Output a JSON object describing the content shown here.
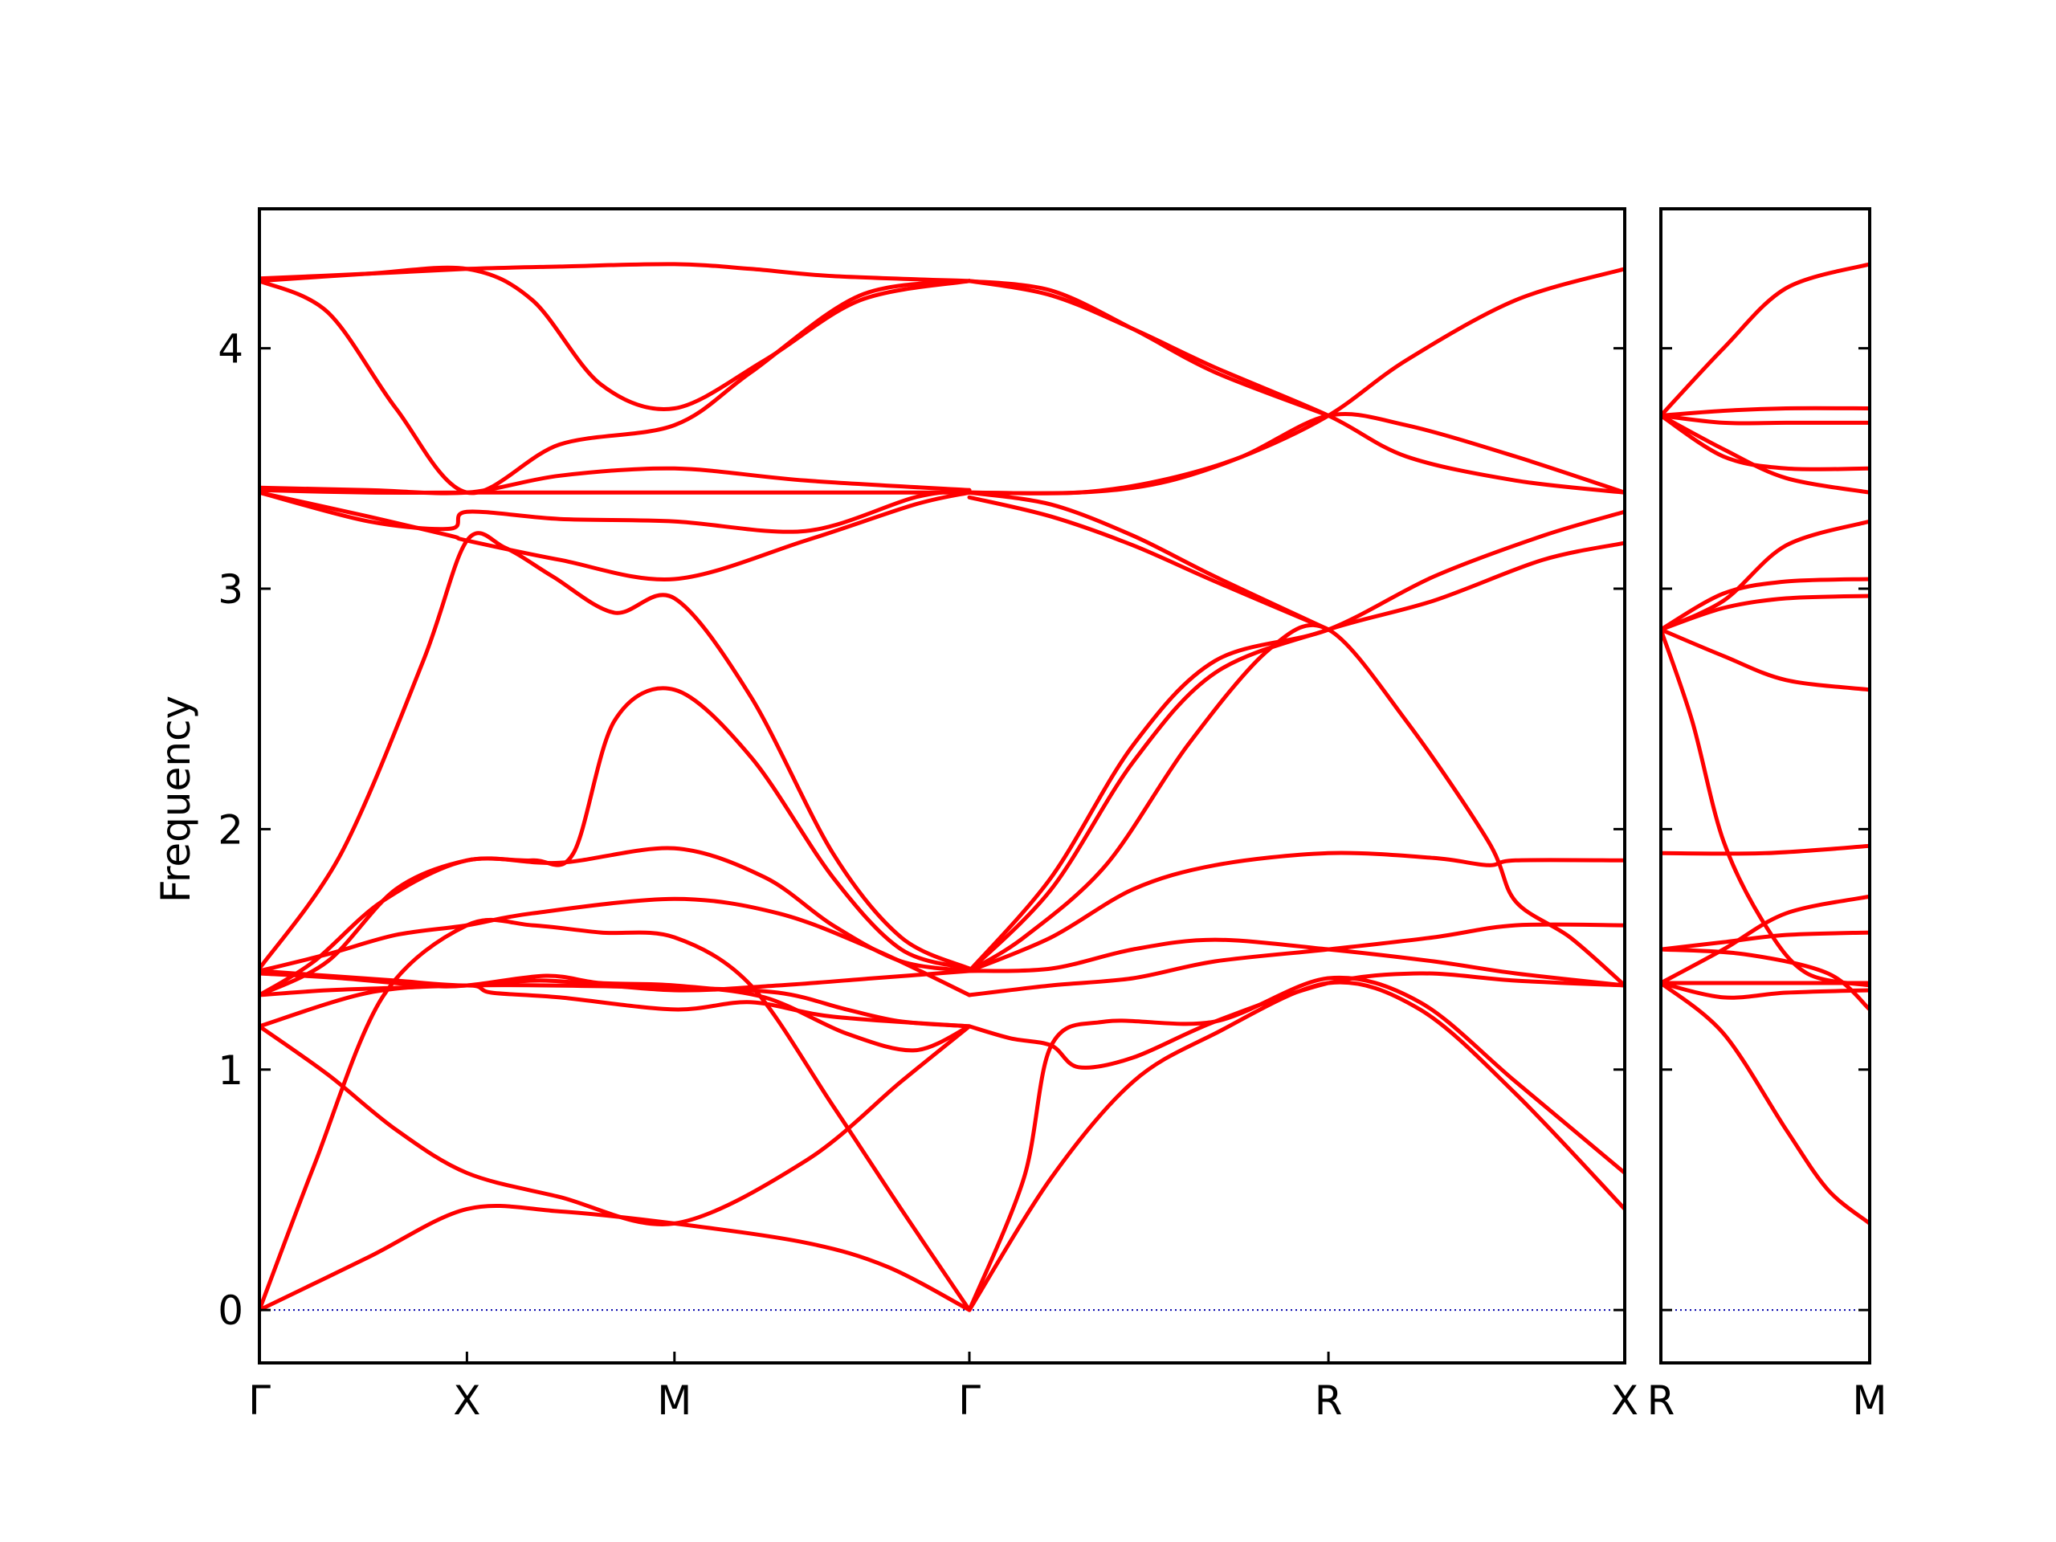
{
  "chart_data": {
    "type": "line",
    "ylabel": "Frequency",
    "xlabel": "",
    "title": "",
    "ylim": [
      -0.22,
      4.58
    ],
    "yticks": [
      0,
      1,
      2,
      3,
      4
    ],
    "grid": false,
    "zero_line_color": "#0000aa",
    "band_color": "#ff0000",
    "panels": [
      {
        "xlim": [
          0,
          100
        ],
        "ticks": [
          {
            "x": 0,
            "label": "Γ"
          },
          {
            "x": 15.2,
            "label": "X"
          },
          {
            "x": 30.4,
            "label": "M"
          },
          {
            "x": 52.0,
            "label": "Γ"
          },
          {
            "x": 78.3,
            "label": "R"
          },
          {
            "x": 100,
            "label": "X"
          }
        ],
        "series": [
          {
            "x": [
              0,
              8,
              15.2,
              22,
              30.4,
              40,
              46,
              52
            ],
            "y": [
              0,
              0.22,
              0.42,
              0.41,
              0.36,
              0.28,
              0.18,
              0
            ]
          },
          {
            "x": [
              0,
              5,
              10,
              15.2,
              22,
              30.4,
              40,
              47,
              52
            ],
            "y": [
              1.18,
              0.98,
              0.75,
              0.57,
              0.47,
              0.36,
              0.62,
              0.95,
              1.18
            ]
          },
          {
            "x": [
              0,
              4,
              9,
              15.2,
              20,
              25,
              30.4,
              36,
              42,
              47,
              52
            ],
            "y": [
              0,
              0.6,
              1.3,
              1.6,
              1.6,
              1.57,
              1.55,
              1.35,
              0.85,
              0.42,
              0
            ]
          },
          {
            "x": [
              0,
              8,
              15.2,
              17,
              22,
              30.4,
              36,
              42,
              52
            ],
            "y": [
              1.18,
              1.32,
              1.35,
              1.32,
              1.3,
              1.25,
              1.28,
              1.22,
              1.18
            ]
          },
          {
            "x": [
              0,
              5,
              10,
              15.2,
              21,
              30.4,
              38,
              43,
              47,
              52
            ],
            "y": [
              1.31,
              1.33,
              1.34,
              1.35,
              1.35,
              1.34,
              1.32,
              1.25,
              1.2,
              1.18
            ]
          },
          {
            "x": [
              0,
              5,
              10,
              15.2,
              21,
              30.4,
              38,
              45,
              52
            ],
            "y": [
              1.41,
              1.39,
              1.37,
              1.35,
              1.37,
              1.33,
              1.35,
              1.38,
              1.41
            ]
          },
          {
            "x": [
              0,
              6,
              12,
              15.2,
              21,
              25,
              30.4,
              37,
              43,
              48,
              52
            ],
            "y": [
              1.4,
              1.38,
              1.35,
              1.35,
              1.39,
              1.36,
              1.35,
              1.3,
              1.15,
              1.08,
              1.18
            ]
          },
          {
            "x": [
              0,
              4,
              9,
              15.2,
              22,
              30.4,
              37,
              42,
              47,
              52
            ],
            "y": [
              1.31,
              1.45,
              1.7,
              1.87,
              1.86,
              1.92,
              1.8,
              1.6,
              1.45,
              1.41
            ]
          },
          {
            "x": [
              0,
              5,
              10,
              15.2,
              20,
              30.4,
              38,
              45,
              52
            ],
            "y": [
              1.41,
              1.48,
              1.56,
              1.6,
              1.65,
              1.71,
              1.65,
              1.5,
              1.31
            ]
          },
          {
            "x": [
              0,
              6,
              12,
              15.2,
              18,
              21.5,
              26,
              30.4,
              36,
              42,
              47,
              52
            ],
            "y": [
              1.42,
              1.9,
              2.7,
              3.2,
              3.17,
              3.05,
              2.9,
              2.96,
              2.55,
              1.9,
              1.55,
              1.42
            ]
          },
          {
            "x": [
              0,
              5,
              10,
              15.2,
              20,
              23,
              26,
              30.4,
              36,
              42,
              47,
              52
            ],
            "y": [
              1.31,
              1.45,
              1.75,
              1.87,
              1.87,
              1.9,
              2.45,
              2.58,
              2.3,
              1.8,
              1.5,
              1.42
            ]
          },
          {
            "x": [
              0,
              8,
              14,
              15.2,
              22,
              30.4,
              40,
              48,
              52
            ],
            "y": [
              3.4,
              3.3,
              3.22,
              3.2,
              3.12,
              3.04,
              3.2,
              3.35,
              3.4
            ]
          },
          {
            "x": [
              0,
              8,
              14,
              15.2,
              22,
              30.4,
              40,
              48,
              52
            ],
            "y": [
              3.4,
              3.28,
              3.25,
              3.32,
              3.29,
              3.28,
              3.24,
              3.38,
              3.41
            ]
          },
          {
            "x": [
              0,
              8,
              15.2,
              22,
              30.4,
              40,
              52
            ],
            "y": [
              3.42,
              3.41,
              3.4,
              3.47,
              3.5,
              3.45,
              3.41
            ]
          },
          {
            "x": [
              0,
              8,
              15.2,
              22,
              30.4,
              40,
              52
            ],
            "y": [
              3.41,
              3.4,
              3.4,
              3.4,
              3.4,
              3.4,
              3.4
            ]
          },
          {
            "x": [
              0,
              8,
              15.2,
              22,
              30.4,
              36,
              42,
              52
            ],
            "y": [
              4.29,
              4.31,
              4.33,
              4.34,
              4.35,
              4.33,
              4.3,
              4.28
            ]
          },
          {
            "x": [
              0,
              8,
              15.2,
              20,
              25,
              30.4,
              37,
              44,
              52
            ],
            "y": [
              4.28,
              4.31,
              4.33,
              4.2,
              3.85,
              3.75,
              3.95,
              4.2,
              4.28
            ]
          },
          {
            "x": [
              0,
              5,
              10,
              15.2,
              22,
              30.4,
              36,
              44,
              52
            ],
            "y": [
              4.28,
              4.15,
              3.75,
              3.4,
              3.6,
              3.68,
              3.9,
              4.22,
              4.28
            ]
          },
          {
            "x": [
              52,
              58,
              64,
              70,
              78.3,
              85,
              92,
              100
            ],
            "y": [
              0,
              0.55,
              0.95,
              1.15,
              1.36,
              1.25,
              0.9,
              0.42
            ]
          },
          {
            "x": [
              52,
              56,
              58,
              62,
              70,
              78.3,
              85,
              92,
              100
            ],
            "y": [
              0,
              0.55,
              1.1,
              1.2,
              1.2,
              1.38,
              1.28,
              0.95,
              0.57
            ]
          },
          {
            "x": [
              52,
              55,
              58,
              60,
              64,
              70,
              78.3,
              85,
              92,
              100
            ],
            "y": [
              1.18,
              1.13,
              1.1,
              1.01,
              1.05,
              1.2,
              1.36,
              1.4,
              1.37,
              1.35
            ]
          },
          {
            "x": [
              52,
              58,
              64,
              70,
              78.3,
              86,
              92,
              100
            ],
            "y": [
              1.31,
              1.35,
              1.38,
              1.45,
              1.5,
              1.55,
              1.6,
              1.6
            ]
          },
          {
            "x": [
              52,
              58,
              64,
              70,
              78.3,
              86,
              92,
              100
            ],
            "y": [
              1.41,
              1.42,
              1.5,
              1.54,
              1.5,
              1.45,
              1.4,
              1.35
            ]
          },
          {
            "x": [
              52,
              58,
              64,
              70,
              78.3,
              86,
              90,
              92,
              100
            ],
            "y": [
              1.41,
              1.55,
              1.75,
              1.85,
              1.9,
              1.88,
              1.85,
              1.87,
              1.87
            ]
          },
          {
            "x": [
              52,
              56,
              62,
              68,
              74,
              78.3,
              84,
              90,
              92,
              96,
              100
            ],
            "y": [
              1.41,
              1.55,
              1.85,
              2.35,
              2.75,
              2.83,
              2.45,
              1.95,
              1.7,
              1.55,
              1.35
            ]
          },
          {
            "x": [
              52,
              58,
              64,
              70,
              78.3,
              86,
              94,
              100
            ],
            "y": [
              1.41,
              1.8,
              2.35,
              2.7,
              2.83,
              3.05,
              3.22,
              3.32
            ]
          },
          {
            "x": [
              52,
              58,
              64,
              70,
              78.3,
              86,
              94,
              100
            ],
            "y": [
              1.41,
              1.75,
              2.28,
              2.65,
              2.83,
              2.95,
              3.12,
              3.19
            ]
          },
          {
            "x": [
              52,
              58,
              64,
              70,
              78.3
            ],
            "y": [
              3.4,
              3.35,
              3.22,
              3.05,
              2.83
            ]
          },
          {
            "x": [
              52,
              58,
              64,
              70,
              78.3
            ],
            "y": [
              3.38,
              3.3,
              3.18,
              3.03,
              2.83
            ]
          },
          {
            "x": [
              52,
              60,
              66,
              72,
              78.3,
              84,
              92,
              100
            ],
            "y": [
              3.4,
              3.4,
              3.45,
              3.55,
              3.72,
              3.95,
              4.2,
              4.33
            ]
          },
          {
            "x": [
              52,
              60,
              66,
              72,
              78.3,
              84,
              92,
              100
            ],
            "y": [
              3.4,
              3.4,
              3.44,
              3.55,
              3.72,
              3.68,
              3.55,
              3.4
            ]
          },
          {
            "x": [
              52,
              58,
              64,
              70,
              78.3,
              84,
              92,
              100
            ],
            "y": [
              4.28,
              4.22,
              4.08,
              3.92,
              3.72,
              3.55,
              3.45,
              3.4
            ]
          },
          {
            "x": [
              52,
              58,
              64,
              70,
              78.3
            ],
            "y": [
              4.28,
              4.24,
              4.08,
              3.9,
              3.72
            ]
          }
        ]
      },
      {
        "xlim": [
          0,
          100
        ],
        "ticks": [
          {
            "x": 0,
            "label": "R"
          },
          {
            "x": 100,
            "label": "M"
          }
        ],
        "series": [
          {
            "x": [
              0,
              30,
              60,
              80,
              100
            ],
            "y": [
              1.36,
              1.15,
              0.75,
              0.5,
              0.36
            ]
          },
          {
            "x": [
              0,
              30,
              60,
              100
            ],
            "y": [
              1.36,
              1.3,
              1.32,
              1.33
            ]
          },
          {
            "x": [
              0,
              40,
              80,
              100
            ],
            "y": [
              1.36,
              1.36,
              1.36,
              1.36
            ]
          },
          {
            "x": [
              0,
              40,
              80,
              100
            ],
            "y": [
              1.5,
              1.48,
              1.4,
              1.25
            ]
          },
          {
            "x": [
              0,
              30,
              60,
              100
            ],
            "y": [
              1.5,
              1.53,
              1.56,
              1.57
            ]
          },
          {
            "x": [
              0,
              30,
              60,
              100
            ],
            "y": [
              1.36,
              1.5,
              1.65,
              1.72
            ]
          },
          {
            "x": [
              0,
              50,
              100
            ],
            "y": [
              1.9,
              1.9,
              1.93
            ]
          },
          {
            "x": [
              0,
              15,
              30,
              50,
              70,
              100
            ],
            "y": [
              2.83,
              2.45,
              1.95,
              1.6,
              1.4,
              1.35
            ]
          },
          {
            "x": [
              0,
              30,
              60,
              100
            ],
            "y": [
              2.83,
              2.72,
              2.62,
              2.58
            ]
          },
          {
            "x": [
              0,
              30,
              60,
              100
            ],
            "y": [
              2.83,
              2.92,
              2.96,
              2.97
            ]
          },
          {
            "x": [
              0,
              30,
              60,
              100
            ],
            "y": [
              2.83,
              2.98,
              3.03,
              3.04
            ]
          },
          {
            "x": [
              0,
              30,
              60,
              100
            ],
            "y": [
              2.83,
              2.95,
              3.18,
              3.28
            ]
          },
          {
            "x": [
              0,
              30,
              60,
              100
            ],
            "y": [
              3.72,
              3.58,
              3.46,
              3.4
            ]
          },
          {
            "x": [
              0,
              30,
              60,
              100
            ],
            "y": [
              3.72,
              3.55,
              3.5,
              3.5
            ]
          },
          {
            "x": [
              0,
              30,
              60,
              100
            ],
            "y": [
              3.72,
              3.69,
              3.69,
              3.69
            ]
          },
          {
            "x": [
              0,
              30,
              60,
              100
            ],
            "y": [
              3.72,
              3.74,
              3.75,
              3.75
            ]
          },
          {
            "x": [
              0,
              30,
              60,
              100
            ],
            "y": [
              3.72,
              4.0,
              4.25,
              4.35
            ]
          }
        ]
      }
    ]
  }
}
